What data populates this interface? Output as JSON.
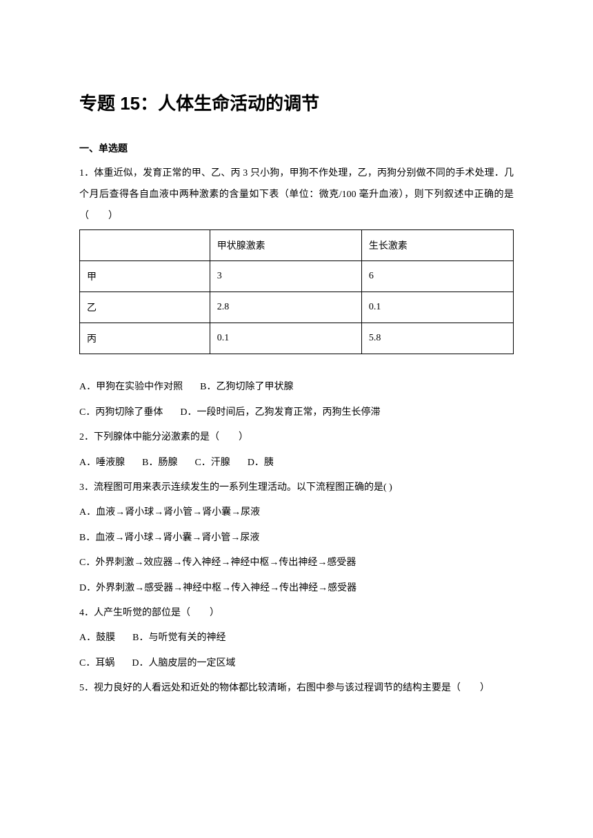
{
  "title": "专题 15：人体生命活动的调节",
  "section": "一、单选题",
  "q1": {
    "stem": "1．体重近似，发育正常的甲、乙、丙 3 只小狗，甲狗不作处理，乙，丙狗分别做不同的手术处理．几个月后查得各自血液中两种激素的含量如下表（单位：微克/100 毫升血液），则下列叙述中正确的是（　　）",
    "table": {
      "columns": [
        "",
        "甲状腺激素",
        "生长激素"
      ],
      "rows": [
        [
          "甲",
          "3",
          "6"
        ],
        [
          "乙",
          "2.8",
          "0.1"
        ],
        [
          "丙",
          "0.1",
          "5.8"
        ]
      ]
    },
    "optA": "A．甲狗在实验中作对照",
    "optB": "B．乙狗切除了甲状腺",
    "optC": "C．丙狗切除了垂体",
    "optD": "D．一段时间后，乙狗发育正常，丙狗生长停滞"
  },
  "q2": {
    "stem": "2．下列腺体中能分泌激素的是（　　）",
    "optA": "A．唾液腺",
    "optB": "B．肠腺",
    "optC": "C．汗腺",
    "optD": "D．胰"
  },
  "q3": {
    "stem": "3．流程图可用来表示连续发生的一系列生理活动。以下流程图正确的是(       )",
    "optA": "A．血液→肾小球→肾小管→肾小囊→尿液",
    "optB": "B．血液→肾小球→肾小囊→肾小管→尿液",
    "optC": "C．外界刺激→效应器→传入神经→神经中枢→传出神经→感受器",
    "optD": "D．外界刺激→感受器→神经中枢→传入神经→传出神经→感受器"
  },
  "q4": {
    "stem": "4．人产生听觉的部位是（　　）",
    "optA": "A．鼓膜",
    "optB": "B．与听觉有关的神经",
    "optC": "C．耳蜗",
    "optD": "D．人脑皮层的一定区域"
  },
  "q5": {
    "stem": "5．视力良好的人看远处和近处的物体都比较清晰，右图中参与该过程调节的结构主要是（　　）"
  }
}
